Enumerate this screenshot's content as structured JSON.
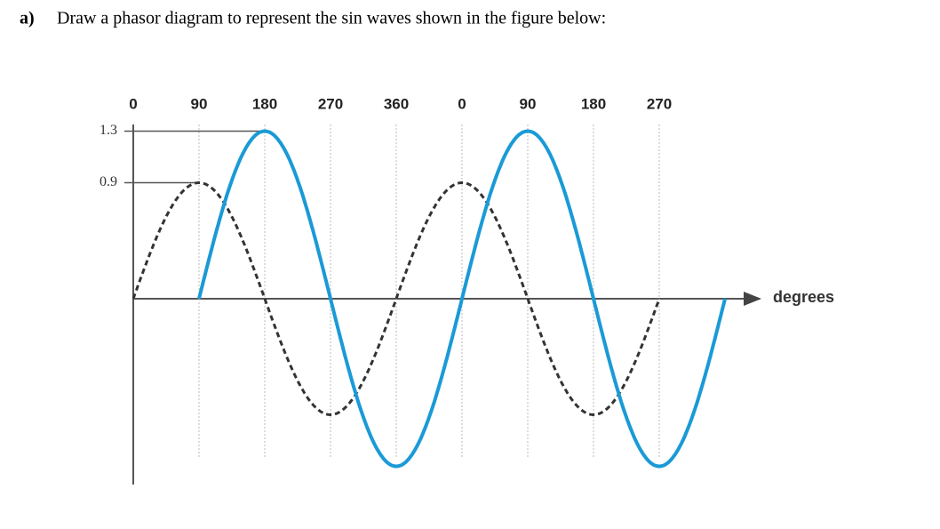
{
  "question": {
    "label": "a)",
    "text": "Draw a phasor diagram to represent the sin waves shown in the figure below:"
  },
  "figure": {
    "top_labels": [
      "0",
      "90",
      "180",
      "270",
      "360",
      "0",
      "90",
      "180",
      "270"
    ],
    "yticks": [
      1.3,
      0.9
    ],
    "x_axis_label": "degrees",
    "waves": [
      {
        "amplitude": 0.9,
        "x_range": [
          0,
          720
        ],
        "color": "#333333",
        "dashed": true
      },
      {
        "amplitude": 1.3,
        "x_range": [
          90,
          810
        ],
        "color": "#1a9ad6",
        "dashed": false
      }
    ]
  }
}
